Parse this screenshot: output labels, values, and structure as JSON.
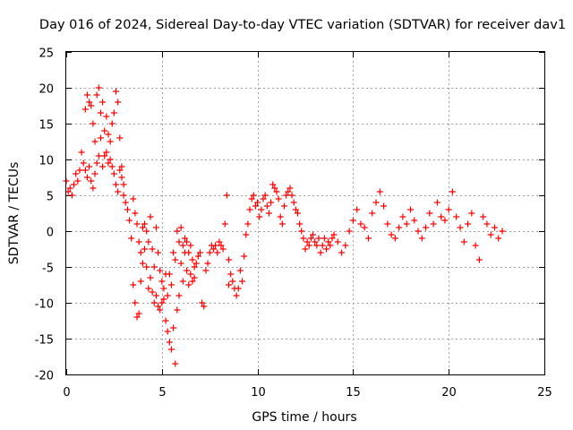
{
  "chart_data": {
    "type": "scatter",
    "title": "Day 016 of 2024, Sidereal Day-to-day VTEC variation (SDTVAR) for receiver dav1",
    "xlabel": "GPS time / hours",
    "ylabel": "SDTVAR / TECUs",
    "xlim": [
      0,
      25
    ],
    "ylim": [
      -20,
      25
    ],
    "xticks": [
      "0",
      "5",
      "10",
      "15",
      "20",
      "25"
    ],
    "yticks": [
      "-20",
      "-15",
      "-10",
      "-5",
      "0",
      "5",
      "10",
      "15",
      "20",
      "25"
    ],
    "xtick_values": [
      0,
      5,
      10,
      15,
      20,
      25
    ],
    "ytick_values": [
      -20,
      -15,
      -10,
      -5,
      0,
      5,
      10,
      15,
      20,
      25
    ],
    "grid": true,
    "marker": "plus",
    "color": "#ff0000",
    "series": [
      {
        "name": "dav1",
        "x": [
          0.0,
          0.1,
          0.2,
          0.3,
          0.4,
          0.5,
          0.6,
          0.7,
          0.8,
          0.9,
          1.0,
          1.0,
          1.1,
          1.1,
          1.2,
          1.2,
          1.3,
          1.3,
          1.4,
          1.4,
          1.5,
          1.5,
          1.6,
          1.6,
          1.7,
          1.7,
          1.8,
          1.8,
          1.9,
          1.9,
          2.0,
          2.0,
          2.1,
          2.1,
          2.2,
          2.2,
          2.3,
          2.3,
          2.4,
          2.4,
          2.5,
          2.5,
          2.6,
          2.6,
          2.7,
          2.7,
          2.8,
          2.8,
          2.9,
          2.9,
          3.0,
          3.0,
          3.1,
          3.2,
          3.3,
          3.4,
          3.5,
          3.5,
          3.6,
          3.6,
          3.7,
          3.7,
          3.8,
          3.8,
          3.9,
          3.9,
          4.0,
          4.0,
          4.1,
          4.1,
          4.2,
          4.2,
          4.3,
          4.3,
          4.4,
          4.4,
          4.5,
          4.5,
          4.6,
          4.6,
          4.7,
          4.7,
          4.8,
          4.8,
          4.9,
          4.9,
          5.0,
          5.0,
          5.1,
          5.1,
          5.2,
          5.2,
          5.3,
          5.3,
          5.4,
          5.4,
          5.5,
          5.5,
          5.6,
          5.6,
          5.7,
          5.7,
          5.8,
          5.8,
          5.9,
          5.9,
          6.0,
          6.0,
          6.1,
          6.1,
          6.2,
          6.2,
          6.3,
          6.3,
          6.4,
          6.4,
          6.5,
          6.5,
          6.6,
          6.6,
          6.7,
          6.7,
          6.8,
          6.9,
          7.0,
          7.1,
          7.2,
          7.3,
          7.4,
          7.5,
          7.6,
          7.7,
          7.8,
          7.9,
          8.0,
          8.1,
          8.2,
          8.3,
          8.4,
          8.5,
          8.5,
          8.6,
          8.7,
          8.8,
          8.9,
          9.0,
          9.1,
          9.2,
          9.3,
          9.4,
          9.5,
          9.6,
          9.7,
          9.8,
          9.9,
          10.0,
          10.1,
          10.2,
          10.3,
          10.4,
          10.5,
          10.6,
          10.7,
          10.8,
          10.9,
          11.0,
          11.1,
          11.2,
          11.3,
          11.4,
          11.5,
          11.6,
          11.7,
          11.8,
          11.9,
          12.0,
          12.1,
          12.2,
          12.3,
          12.4,
          12.5,
          12.6,
          12.7,
          12.8,
          12.9,
          13.0,
          13.1,
          13.2,
          13.3,
          13.4,
          13.5,
          13.6,
          13.7,
          13.8,
          13.9,
          14.0,
          14.2,
          14.4,
          14.6,
          14.8,
          15.0,
          15.2,
          15.4,
          15.6,
          15.8,
          16.0,
          16.2,
          16.4,
          16.6,
          16.8,
          17.0,
          17.2,
          17.4,
          17.6,
          17.8,
          18.0,
          18.2,
          18.4,
          18.6,
          18.8,
          19.0,
          19.2,
          19.4,
          19.6,
          19.8,
          20.0,
          20.2,
          20.4,
          20.6,
          20.8,
          21.0,
          21.2,
          21.4,
          21.6,
          21.8,
          22.0,
          22.2,
          22.4,
          22.6,
          22.8
        ],
        "y": [
          7.0,
          5.5,
          6.0,
          5.0,
          6.5,
          8.0,
          7.0,
          8.5,
          11.0,
          9.5,
          17.0,
          8.5,
          19.0,
          7.5,
          18.0,
          9.0,
          17.5,
          7.0,
          15.0,
          6.0,
          12.5,
          8.0,
          19.0,
          9.5,
          20.0,
          10.5,
          16.5,
          13.0,
          18.0,
          9.0,
          14.0,
          10.5,
          16.0,
          11.0,
          13.5,
          9.5,
          12.5,
          10.0,
          15.0,
          9.0,
          16.5,
          8.0,
          19.5,
          6.5,
          18.0,
          5.5,
          13.0,
          8.5,
          9.0,
          7.5,
          6.5,
          5.0,
          4.0,
          3.0,
          1.5,
          -1.0,
          4.5,
          -7.5,
          2.5,
          -10.0,
          1.0,
          -12.0,
          -1.5,
          -11.5,
          -3.0,
          -7.0,
          0.5,
          -4.5,
          1.0,
          -2.5,
          0.0,
          -5.0,
          -1.5,
          -8.0,
          2.0,
          -6.5,
          -2.5,
          -8.5,
          -5.0,
          -10.0,
          0.5,
          -9.0,
          -3.0,
          -10.5,
          -5.5,
          -11.0,
          -7.0,
          -10.0,
          -8.0,
          -9.5,
          -6.0,
          -12.5,
          -9.0,
          -14.0,
          -6.0,
          -15.5,
          -7.5,
          -16.5,
          -3.0,
          -13.5,
          -4.0,
          -18.5,
          0.0,
          -11.0,
          -1.5,
          -9.0,
          0.5,
          -4.5,
          -2.0,
          -7.0,
          -1.0,
          -3.0,
          -5.5,
          -1.5,
          -7.5,
          -3.0,
          -6.0,
          -2.0,
          -7.0,
          -4.0,
          -6.5,
          -5.0,
          -4.5,
          -3.5,
          -3.0,
          -10.0,
          -10.5,
          -5.5,
          -4.5,
          -3.0,
          -2.0,
          -2.5,
          -2.0,
          -3.0,
          -1.5,
          -2.0,
          -2.5,
          1.0,
          5.0,
          -7.5,
          -4.0,
          -6.0,
          -7.0,
          -8.0,
          -9.0,
          -8.0,
          -5.5,
          -7.0,
          -3.5,
          -0.5,
          1.0,
          3.0,
          4.5,
          5.0,
          3.5,
          4.0,
          2.0,
          3.0,
          4.5,
          5.0,
          3.5,
          2.5,
          4.0,
          6.5,
          6.0,
          5.5,
          4.5,
          2.0,
          1.0,
          3.5,
          5.0,
          5.5,
          6.0,
          5.0,
          4.0,
          3.0,
          2.5,
          1.0,
          0.0,
          -1.0,
          -2.5,
          -1.5,
          -2.0,
          -1.0,
          -0.5,
          -1.5,
          -2.0,
          -1.0,
          -3.0,
          -2.0,
          -1.0,
          -2.5,
          -1.5,
          -2.0,
          -1.0,
          -0.5,
          -1.5,
          -3.0,
          -2.0,
          0.0,
          1.5,
          3.0,
          1.0,
          0.5,
          -1.0,
          2.5,
          4.0,
          5.5,
          3.5,
          1.0,
          -0.5,
          -1.0,
          0.5,
          2.0,
          1.0,
          3.0,
          1.5,
          0.0,
          -1.0,
          0.5,
          2.5,
          1.0,
          4.0,
          2.0,
          1.5,
          3.0,
          5.5,
          2.0,
          0.5,
          -1.5,
          1.0,
          2.5,
          -2.0,
          -4.0,
          2.0,
          1.0,
          -0.5,
          0.5,
          -1.0,
          0.0
        ]
      }
    ]
  }
}
